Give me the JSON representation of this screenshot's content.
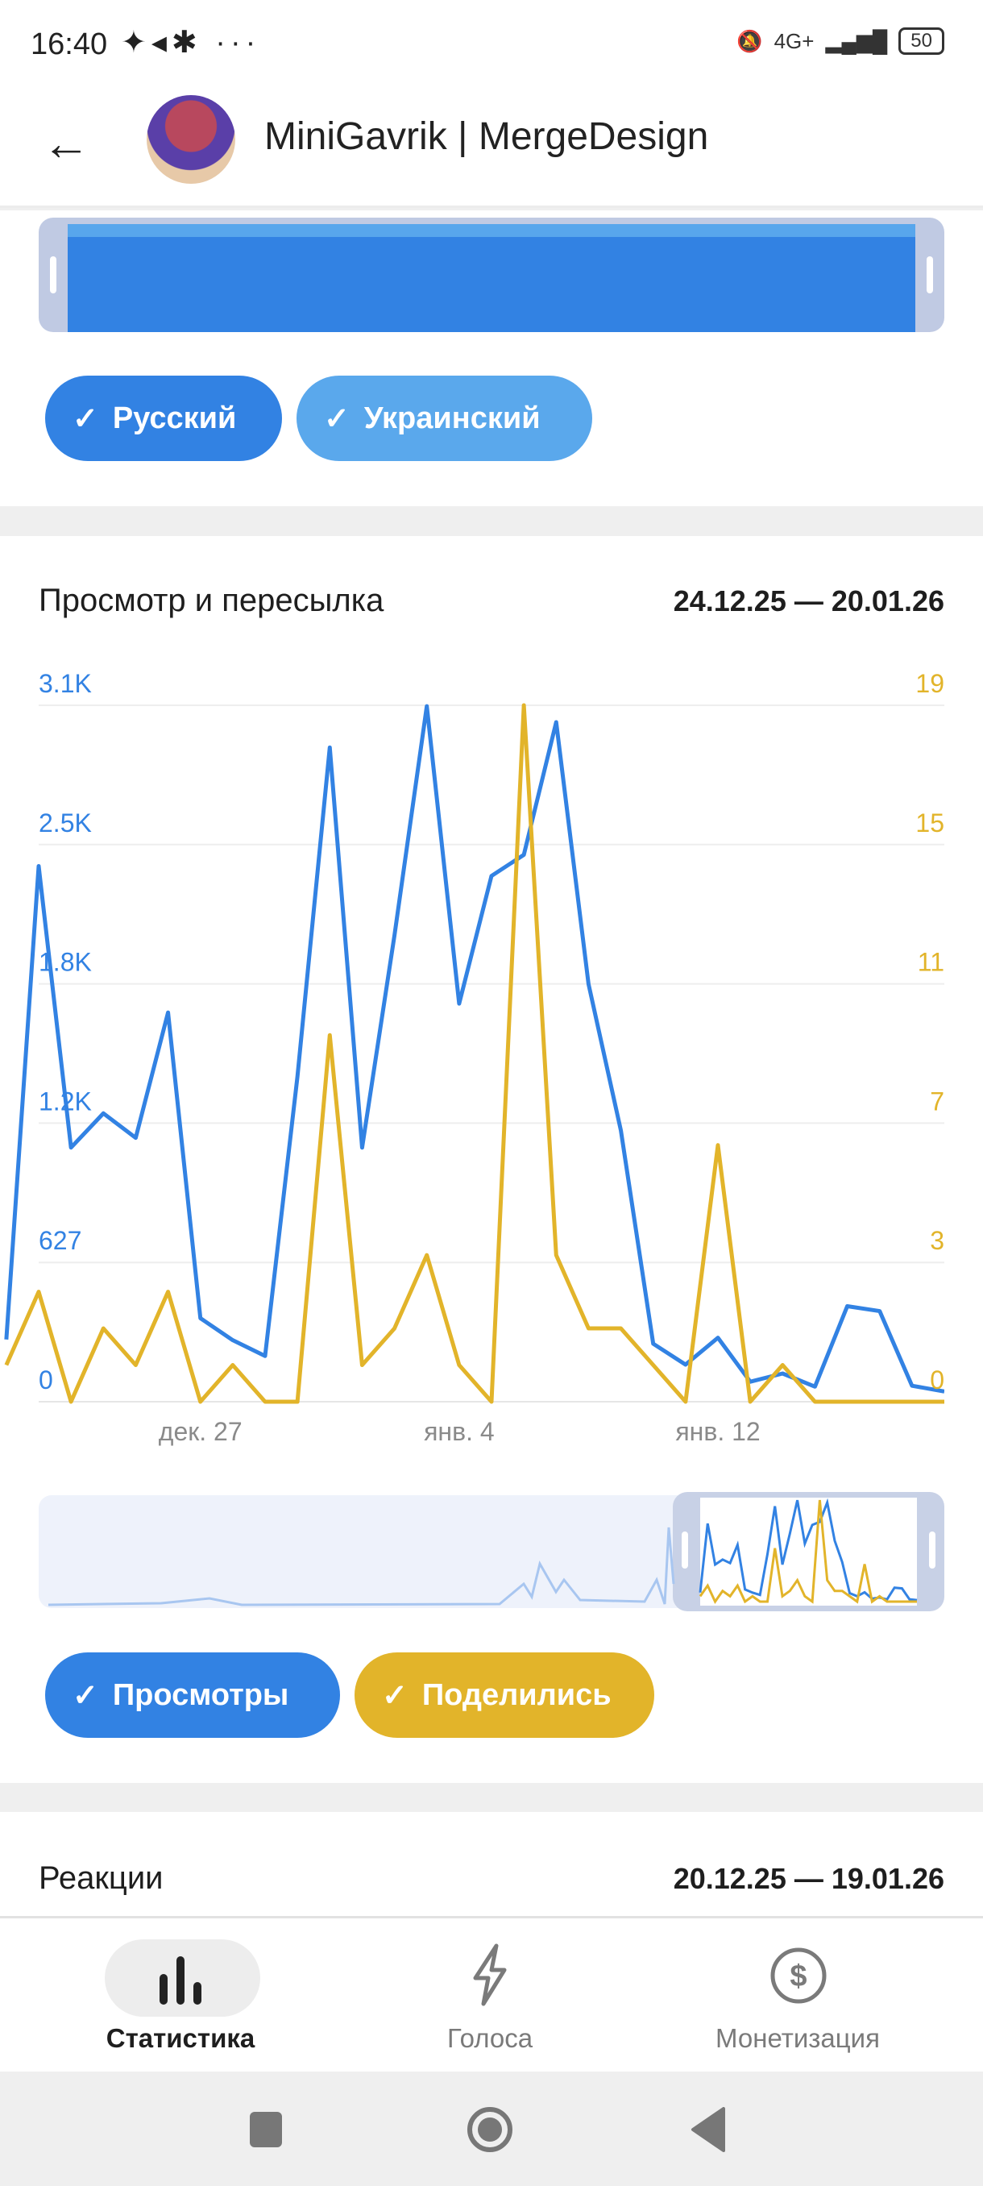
{
  "status_bar": {
    "time": "16:40",
    "network": "4G+",
    "battery": "50"
  },
  "header": {
    "title": "MiniGavrik | MergeDesign"
  },
  "languages": {
    "chips": [
      {
        "label": "Русский",
        "color": "#3282e3"
      },
      {
        "label": "Украинский",
        "color": "#5aa8ec"
      }
    ]
  },
  "views_card": {
    "title": "Просмотр и пересылка",
    "date_range": "24.12.25 — 20.01.26",
    "chips": [
      {
        "label": "Просмотры",
        "color": "#3282e3"
      },
      {
        "label": "Поделились",
        "color": "#e2b42a"
      }
    ]
  },
  "chart_data": {
    "type": "line",
    "title": "Просмотр и пересылка",
    "x": [
      "дек. 21",
      "дек. 22",
      "дек. 23",
      "дек. 24",
      "дек. 25",
      "дек. 26",
      "дек. 27",
      "дек. 28",
      "дек. 29",
      "дек. 30",
      "дек. 31",
      "янв. 1",
      "янв. 2",
      "янв. 3",
      "янв. 4",
      "янв. 5",
      "янв. 6",
      "янв. 7",
      "янв. 8",
      "янв. 9",
      "янв. 10",
      "янв. 11",
      "янв. 12",
      "янв. 13",
      "янв. 14",
      "янв. 15",
      "янв. 16",
      "янв. 17",
      "янв. 18",
      "янв. 19"
    ],
    "x_tick_labels": [
      {
        "index": 6,
        "label": "дек. 27"
      },
      {
        "index": 14,
        "label": "янв. 4"
      },
      {
        "index": 22,
        "label": "янв. 12"
      }
    ],
    "series": [
      {
        "name": "Просмотры",
        "axis": "left",
        "color": "#3282e3",
        "values": [
          280,
          2411,
          1144,
          1298,
          1188,
          1752,
          376,
          277,
          206,
          1463,
          2945,
          1144,
          2099,
          3131,
          1792,
          2367,
          2462,
          3059,
          1880,
          1221,
          261,
          167,
          288,
          90,
          127,
          68,
          430,
          408,
          72,
          46
        ]
      },
      {
        "name": "Поделились",
        "axis": "right",
        "color": "#e2b42a",
        "values": [
          1,
          3,
          0,
          2,
          1,
          3,
          0,
          1,
          0,
          0,
          10,
          1,
          2,
          4,
          1,
          0,
          19,
          4,
          2,
          2,
          1,
          0,
          7,
          0,
          1,
          0,
          0,
          0,
          0,
          0
        ]
      }
    ],
    "y_left": {
      "ticks": [
        "0",
        "627",
        "1.2K",
        "1.8K",
        "2.5K",
        "3.1K"
      ],
      "ylim": [
        0,
        3135
      ]
    },
    "y_right": {
      "ticks": [
        "0",
        "3",
        "7",
        "11",
        "15",
        "19"
      ],
      "ylim": [
        0,
        19
      ]
    },
    "grid": true
  },
  "reactions_card": {
    "title": "Реакции",
    "date_range": "20.12.25 — 19.01.26"
  },
  "bottom_nav": [
    {
      "label": "Статистика",
      "active": true
    },
    {
      "label": "Голоса"
    },
    {
      "label": "Монетизация"
    }
  ]
}
